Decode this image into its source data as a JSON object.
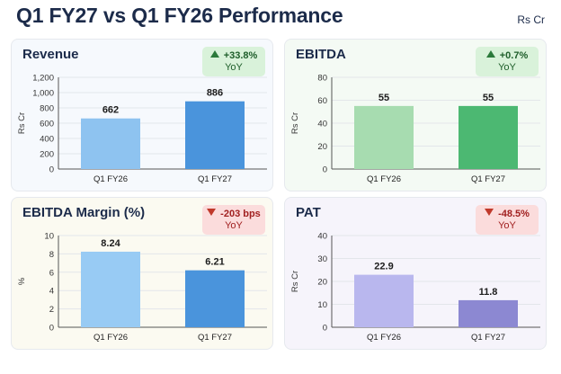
{
  "header": {
    "title": "Q1 FY27 vs Q1 FY26 Performance",
    "unit_note": "Rs Cr"
  },
  "panels": [
    {
      "title": "Revenue",
      "badge": {
        "text": "+33.8%",
        "sub": "YoY",
        "direction": "up"
      }
    },
    {
      "title": "EBITDA",
      "badge": {
        "text": "+0.7%",
        "sub": "YoY",
        "direction": "up"
      }
    },
    {
      "title": "EBITDA Margin (%)",
      "badge": {
        "text": "-203 bps",
        "sub": "YoY",
        "direction": "down"
      }
    },
    {
      "title": "PAT",
      "badge": {
        "text": "-48.5%",
        "sub": "YoY",
        "direction": "down"
      }
    }
  ],
  "chart_data": [
    {
      "type": "bar",
      "title": "Revenue",
      "ylabel": "Rs Cr",
      "categories": [
        "Q1 FY26",
        "Q1 FY27"
      ],
      "values": [
        662,
        886
      ],
      "labels": [
        "662",
        "886"
      ],
      "ylim": [
        0,
        1200
      ],
      "ticks": [
        0,
        200,
        400,
        600,
        800,
        1000,
        1200
      ],
      "tick_labels": [
        "0",
        "200",
        "400",
        "600",
        "800",
        "1,000",
        "1,200"
      ],
      "colors": [
        "#8ec3f0",
        "#4a94dc"
      ],
      "grid": true
    },
    {
      "type": "bar",
      "title": "EBITDA",
      "ylabel": "Rs Cr",
      "categories": [
        "Q1 FY26",
        "Q1 FY27"
      ],
      "values": [
        55,
        55
      ],
      "labels": [
        "55",
        "55"
      ],
      "ylim": [
        0,
        80
      ],
      "ticks": [
        0,
        20,
        40,
        60,
        80
      ],
      "tick_labels": [
        "0",
        "20",
        "40",
        "60",
        "80"
      ],
      "colors": [
        "#a7dcb0",
        "#4cb872"
      ],
      "grid": true
    },
    {
      "type": "bar",
      "title": "EBITDA Margin (%)",
      "ylabel": "%",
      "categories": [
        "Q1 FY26",
        "Q1 FY27"
      ],
      "values": [
        8.24,
        6.21
      ],
      "labels": [
        "8.24",
        "6.21"
      ],
      "ylim": [
        0,
        10
      ],
      "ticks": [
        0,
        2,
        4,
        6,
        8,
        10
      ],
      "tick_labels": [
        "0",
        "2",
        "4",
        "6",
        "8",
        "10"
      ],
      "colors": [
        "#98cbf4",
        "#4a94dc"
      ],
      "grid": true
    },
    {
      "type": "bar",
      "title": "PAT",
      "ylabel": "Rs Cr",
      "categories": [
        "Q1 FY26",
        "Q1 FY27"
      ],
      "values": [
        22.9,
        11.8
      ],
      "labels": [
        "22.9",
        "11.8"
      ],
      "ylim": [
        0,
        40
      ],
      "ticks": [
        0,
        10,
        20,
        30,
        40
      ],
      "tick_labels": [
        "0",
        "10",
        "20",
        "30",
        "40"
      ],
      "colors": [
        "#b9b7ee",
        "#8c88d2"
      ],
      "grid": true
    }
  ]
}
